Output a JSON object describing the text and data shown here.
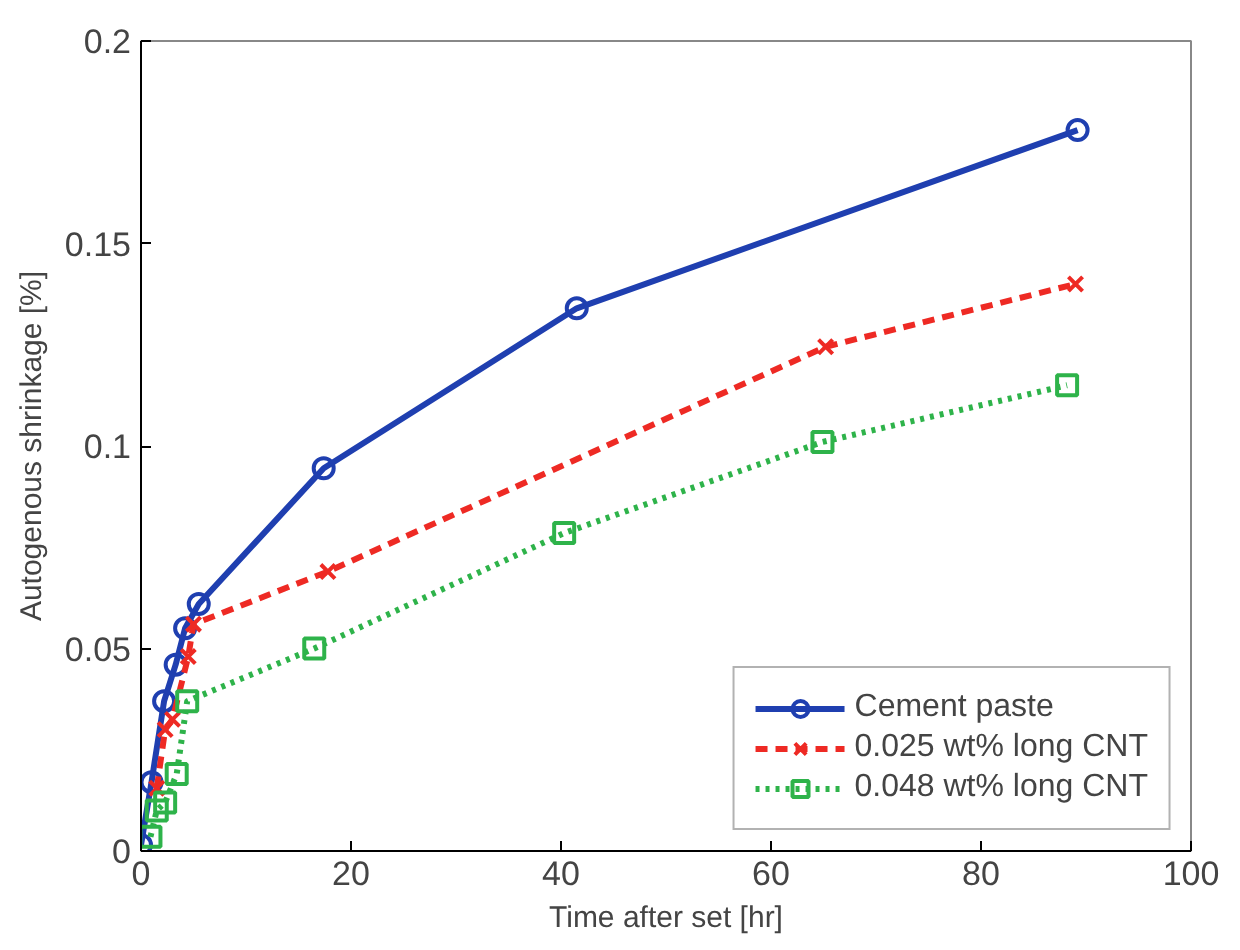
{
  "chart_data": {
    "type": "line",
    "xlabel": "Time after set [hr]",
    "ylabel": "Autogenous shrinkage [%]",
    "xlim": [
      0,
      100
    ],
    "ylim": [
      0,
      0.2
    ],
    "xticks": [
      0,
      20,
      40,
      60,
      80,
      100
    ],
    "yticks": [
      0,
      0.05,
      0.1,
      0.15,
      0.2
    ],
    "grid": false,
    "legend": "bottom right",
    "series": [
      {
        "name": "Cement paste",
        "color": "#1f3fb0",
        "x": [
          0,
          1,
          2.2,
          3.3,
          4.2,
          5.5,
          17.4,
          41.5,
          89.2
        ],
        "values": [
          0.0015,
          0.017,
          0.037,
          0.046,
          0.055,
          0.061,
          0.0945,
          0.134,
          0.178
        ],
        "marker": "circle",
        "line_style": "solid"
      },
      {
        "name": "0.025 wt% long CNT",
        "color": "#ee2a24",
        "x": [
          1.5,
          2.3,
          3.0,
          4.5,
          5.0,
          17.8,
          65.2,
          89
        ],
        "values": [
          0.0155,
          0.03,
          0.0325,
          0.048,
          0.056,
          0.069,
          0.1245,
          0.14
        ],
        "marker": "cross",
        "line_style": "dashed"
      },
      {
        "name": "0.048 wt% long CNT",
        "color": "#2eb34a",
        "x": [
          0.9,
          1.5,
          2.3,
          3.4,
          4.4,
          16.5,
          40.3,
          64.9,
          88.2
        ],
        "values": [
          0.0035,
          0.01,
          0.012,
          0.019,
          0.037,
          0.05,
          0.0785,
          0.101,
          0.115
        ],
        "marker": "square",
        "line_style": "dotted"
      }
    ]
  }
}
